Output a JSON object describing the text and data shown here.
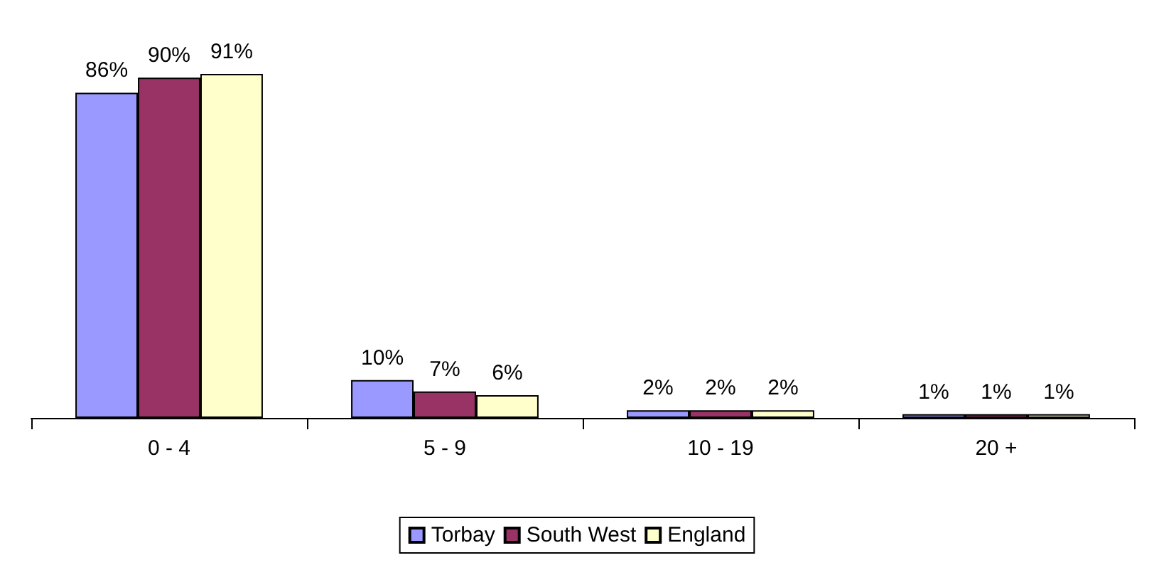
{
  "chart_data": {
    "type": "bar",
    "categories": [
      "0 - 4",
      "5 - 9",
      "10 - 19",
      "20 +"
    ],
    "series": [
      {
        "name": "Torbay",
        "color": "#9999ff",
        "values": [
          86,
          10,
          2,
          1
        ],
        "value_labels": [
          "86%",
          "10%",
          "2%",
          "1%"
        ]
      },
      {
        "name": "South West",
        "color": "#993366",
        "values": [
          90,
          7,
          2,
          1
        ],
        "value_labels": [
          "90%",
          "7%",
          "2%",
          "1%"
        ]
      },
      {
        "name": "England",
        "color": "#ffffcc",
        "values": [
          91,
          6,
          2,
          1
        ],
        "value_labels": [
          "91%",
          "6%",
          "2%",
          "1%"
        ]
      }
    ],
    "legend": "bottom"
  }
}
